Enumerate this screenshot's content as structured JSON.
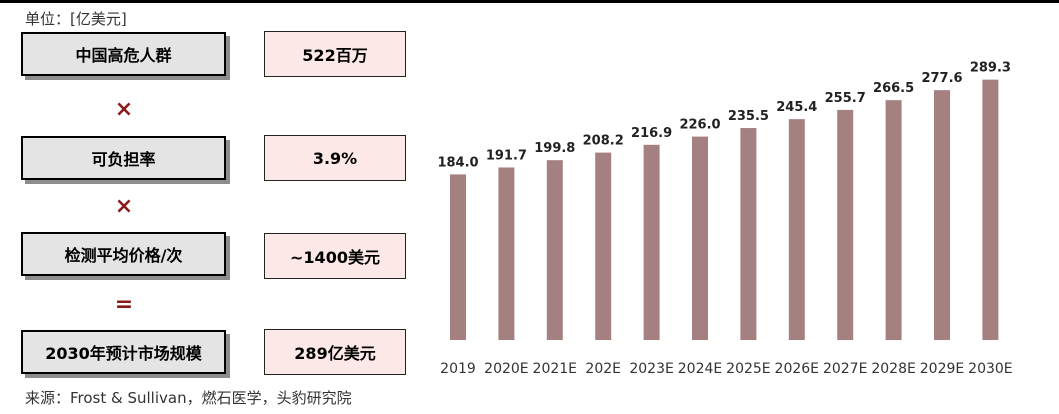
{
  "unit_label": "单位：[亿美元]",
  "source_label": "来源：Frost & Sullivan，燃石医学，头豹研究院",
  "formula": {
    "rows": [
      {
        "label": "中国高危人群",
        "value": "522百万"
      },
      {
        "label": "可负担率",
        "value": "3.9%"
      },
      {
        "label": "检测平均价格/次",
        "value": "~1400美元"
      },
      {
        "label": "2030年预计市场规模",
        "value": "289亿美元"
      }
    ],
    "operators": [
      "×",
      "×",
      "="
    ]
  },
  "chart_data": {
    "type": "bar",
    "title": "",
    "xlabel": "",
    "ylabel": "",
    "categories": [
      "2019",
      "2020E",
      "2021E",
      "202E",
      "2023E",
      "2024E",
      "2025E",
      "2026E",
      "2027E",
      "2028E",
      "2029E",
      "2030E"
    ],
    "values": [
      184.0,
      191.7,
      199.8,
      208.2,
      216.9,
      226.0,
      235.5,
      245.4,
      255.7,
      266.5,
      277.6,
      289.3
    ],
    "value_labels": [
      "184.0",
      "191.7",
      "199.8",
      "208.2",
      "216.9",
      "226.0",
      "235.5",
      "245.4",
      "255.7",
      "266.5",
      "277.6",
      "289.3"
    ],
    "ylim": [
      0,
      300
    ],
    "grid": false,
    "legend": "none",
    "colors": {
      "bar": "#a58080"
    }
  }
}
